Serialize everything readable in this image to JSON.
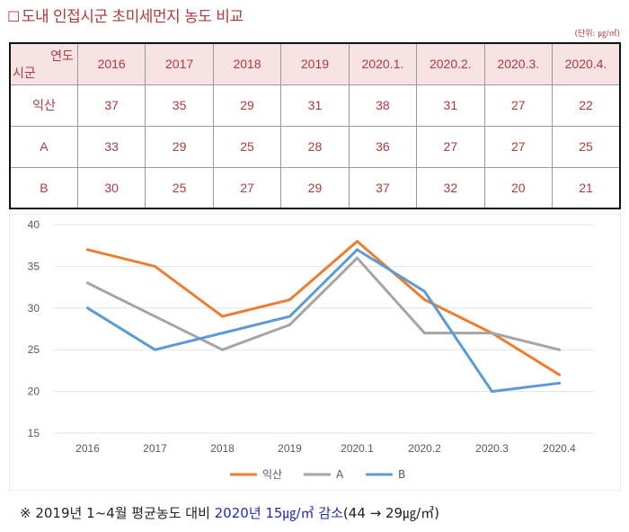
{
  "title": "도내 인접시군 초미세먼지 농도 비교",
  "title_box": "☐",
  "unit": "(단위: ㎍/㎥)",
  "table": {
    "corner_top": "연도",
    "corner_bottom": "시군",
    "columns": [
      "2016",
      "2017",
      "2018",
      "2019",
      "2020.1.",
      "2020.2.",
      "2020.3.",
      "2020.4."
    ],
    "rows": [
      {
        "label": "익산",
        "values": [
          "37",
          "35",
          "29",
          "31",
          "38",
          "31",
          "27",
          "22"
        ]
      },
      {
        "label": "A",
        "values": [
          "33",
          "29",
          "25",
          "28",
          "36",
          "27",
          "27",
          "25"
        ]
      },
      {
        "label": "B",
        "values": [
          "30",
          "25",
          "27",
          "29",
          "37",
          "32",
          "20",
          "21"
        ]
      }
    ]
  },
  "chart_data": {
    "type": "line",
    "categories": [
      "2016",
      "2017",
      "2018",
      "2019",
      "2020.1",
      "2020.2",
      "2020.3",
      "2020.4"
    ],
    "series": [
      {
        "name": "익산",
        "color": "#ed7d31",
        "values": [
          37,
          35,
          29,
          31,
          38,
          31,
          27,
          22
        ]
      },
      {
        "name": "A",
        "color": "#a5a5a5",
        "values": [
          33,
          29,
          25,
          28,
          36,
          27,
          27,
          25
        ]
      },
      {
        "name": "B",
        "color": "#5b9bd5",
        "values": [
          30,
          25,
          27,
          29,
          37,
          32,
          20,
          21
        ]
      }
    ],
    "ylim": [
      15,
      40
    ],
    "yticks": [
      15,
      20,
      25,
      30,
      35,
      40
    ],
    "grid": true,
    "legend": "bottom"
  },
  "note": {
    "prefix": "※ 2019년 1~4월 평균농도 대비 ",
    "highlight1": "2020년 15",
    "unit1": "㎍/㎥",
    "highlight2": " 감소",
    "suffix": "(44 → 29",
    "unit2": "㎍/㎥",
    "end": ")"
  }
}
